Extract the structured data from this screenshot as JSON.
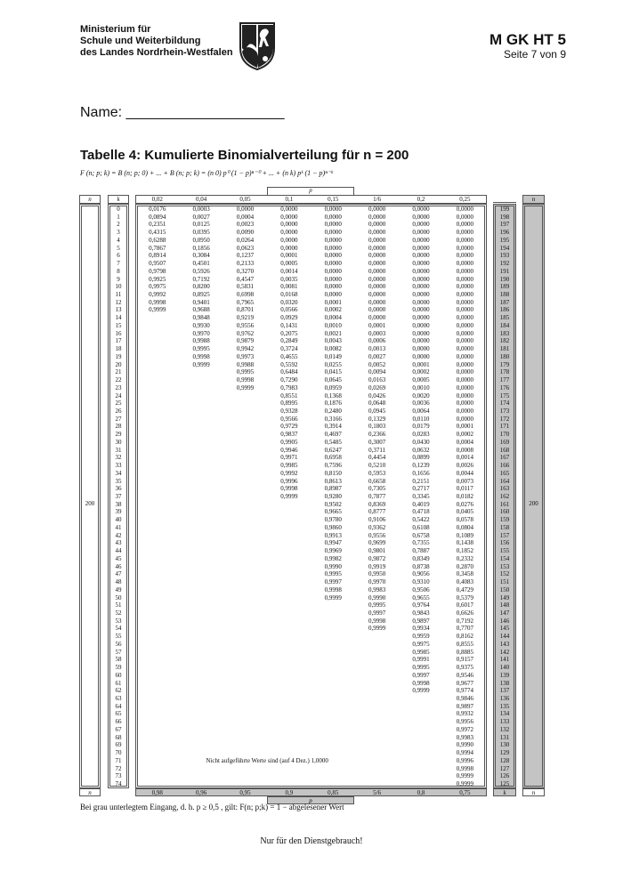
{
  "header": {
    "ministry_lines": [
      "Ministerium für",
      "Schule und Weiterbildung",
      "des Landes Nordrhein-Westfalen"
    ],
    "logo": "NRW coat of arms",
    "exam_code": "M GK HT 5",
    "page_label": "Seite 7 von 9"
  },
  "name_field": "Name: ____________________",
  "title": "Tabelle 4: Kumulierte Binomialverteilung für n = 200",
  "formula": "F (n; p; k) = B (n; p; 0) + ... + B (n; p; k) = (n 0) p⁰ (1 − p)ⁿ⁻⁰ + ... + (n k) pᵏ (1 − p)ⁿ⁻ᵏ",
  "table": {
    "n_label": "n",
    "k_label": "k",
    "p_label": "p",
    "n_value": "200",
    "note": "Nicht aufgeführte Werte sind (auf 4 Dez.) 1,0000",
    "k_values": [
      0,
      1,
      2,
      3,
      4,
      5,
      6,
      7,
      8,
      9,
      10,
      11,
      12,
      13,
      14,
      15,
      16,
      17,
      18,
      19,
      20,
      21,
      22,
      23,
      24,
      25,
      26,
      27,
      28,
      29,
      30,
      31,
      32,
      33,
      34,
      35,
      36,
      37,
      38,
      39,
      40,
      41,
      42,
      43,
      44,
      45,
      46,
      47,
      48,
      49,
      50,
      51,
      52,
      53,
      54,
      55,
      56,
      57,
      58,
      59,
      60,
      61,
      62,
      63,
      64,
      65,
      66,
      67,
      68,
      69,
      70,
      71,
      72,
      73,
      74
    ],
    "k_right_values": [
      199,
      198,
      197,
      196,
      195,
      194,
      193,
      192,
      191,
      190,
      189,
      188,
      187,
      186,
      185,
      184,
      183,
      182,
      181,
      180,
      179,
      178,
      177,
      176,
      175,
      174,
      173,
      172,
      171,
      170,
      169,
      168,
      167,
      166,
      165,
      164,
      163,
      162,
      161,
      160,
      159,
      158,
      157,
      156,
      155,
      154,
      153,
      152,
      151,
      150,
      149,
      148,
      147,
      146,
      145,
      144,
      143,
      142,
      141,
      140,
      139,
      138,
      137,
      136,
      135,
      134,
      133,
      132,
      131,
      130,
      129,
      128,
      127,
      126,
      125
    ],
    "gray_color": "#c4c4c4",
    "columns": [
      {
        "p": "0,02",
        "p_complement": "0,98",
        "values": [
          "0,0176",
          "0,0894",
          "0,2351",
          "0,4315",
          "0,6288",
          "0,7867",
          "0,8914",
          "0,9507",
          "0,9798",
          "0,9925",
          "0,9975",
          "0,9992",
          "0,9998",
          "0,9999"
        ]
      },
      {
        "p": "0,04",
        "p_complement": "0,96",
        "values": [
          "0,0003",
          "0,0027",
          "0,0125",
          "0,0395",
          "0,0950",
          "0,1856",
          "0,3084",
          "0,4501",
          "0,5926",
          "0,7192",
          "0,8200",
          "0,8925",
          "0,9401",
          "0,9688",
          "0,9848",
          "0,9930",
          "0,9970",
          "0,9988",
          "0,9995",
          "0,9998",
          "0,9999"
        ]
      },
      {
        "p": "0,05",
        "p_complement": "0,95",
        "values": [
          "0,0000",
          "0,0004",
          "0,0023",
          "0,0090",
          "0,0264",
          "0,0623",
          "0,1237",
          "0,2133",
          "0,3270",
          "0,4547",
          "0,5831",
          "0,6998",
          "0,7965",
          "0,8701",
          "0,9219",
          "0,9556",
          "0,9762",
          "0,9879",
          "0,9942",
          "0,9973",
          "0,9988",
          "0,9995",
          "0,9998",
          "0,9999"
        ]
      },
      {
        "p": "0,1",
        "p_complement": "0,9",
        "values": [
          "0,0000",
          "0,0000",
          "0,0000",
          "0,0000",
          "0,0000",
          "0,0000",
          "0,0001",
          "0,0005",
          "0,0014",
          "0,0035",
          "0,0081",
          "0,0168",
          "0,0320",
          "0,0566",
          "0,0929",
          "0,1431",
          "0,2075",
          "0,2849",
          "0,3724",
          "0,4655",
          "0,5592",
          "0,6484",
          "0,7290",
          "0,7983",
          "0,8551",
          "0,8995",
          "0,9328",
          "0,9566",
          "0,9729",
          "0,9837",
          "0,9905",
          "0,9946",
          "0,9971",
          "0,9985",
          "0,9992",
          "0,9996",
          "0,9998",
          "0,9999"
        ]
      },
      {
        "p": "0,15",
        "p_complement": "0,85",
        "values": [
          "0,0000",
          "0,0000",
          "0,0000",
          "0,0000",
          "0,0000",
          "0,0000",
          "0,0000",
          "0,0000",
          "0,0000",
          "0,0000",
          "0,0000",
          "0,0000",
          "0,0001",
          "0,0002",
          "0,0004",
          "0,0010",
          "0,0021",
          "0,0043",
          "0,0082",
          "0,0149",
          "0,0255",
          "0,0415",
          "0,0645",
          "0,0959",
          "0,1368",
          "0,1876",
          "0,2480",
          "0,3166",
          "0,3914",
          "0,4697",
          "0,5485",
          "0,6247",
          "0,6958",
          "0,7596",
          "0,8150",
          "0,8613",
          "0,8987",
          "0,9280",
          "0,9502",
          "0,9665",
          "0,9780",
          "0,9860",
          "0,9913",
          "0,9947",
          "0,9969",
          "0,9982",
          "0,9990",
          "0,9995",
          "0,9997",
          "0,9998",
          "0,9999"
        ]
      },
      {
        "p": "1/6",
        "p_complement": "5/6",
        "values": [
          "0,0000",
          "0,0000",
          "0,0000",
          "0,0000",
          "0,0000",
          "0,0000",
          "0,0000",
          "0,0000",
          "0,0000",
          "0,0000",
          "0,0000",
          "0,0000",
          "0,0000",
          "0,0000",
          "0,0000",
          "0,0001",
          "0,0003",
          "0,0006",
          "0,0013",
          "0,0027",
          "0,0052",
          "0,0094",
          "0,0163",
          "0,0269",
          "0,0426",
          "0,0648",
          "0,0945",
          "0,1329",
          "0,1803",
          "0,2366",
          "0,3007",
          "0,3711",
          "0,4454",
          "0,5210",
          "0,5953",
          "0,6658",
          "0,7305",
          "0,7877",
          "0,8369",
          "0,8777",
          "0,9106",
          "0,9362",
          "0,9556",
          "0,9699",
          "0,9801",
          "0,9872",
          "0,9919",
          "0,9950",
          "0,9970",
          "0,9983",
          "0,9990",
          "0,9995",
          "0,9997",
          "0,9998",
          "0,9999"
        ]
      },
      {
        "p": "0,2",
        "p_complement": "0,8",
        "values": [
          "0,0000",
          "0,0000",
          "0,0000",
          "0,0000",
          "0,0000",
          "0,0000",
          "0,0000",
          "0,0000",
          "0,0000",
          "0,0000",
          "0,0000",
          "0,0000",
          "0,0000",
          "0,0000",
          "0,0000",
          "0,0000",
          "0,0000",
          "0,0000",
          "0,0000",
          "0,0000",
          "0,0001",
          "0,0002",
          "0,0005",
          "0,0010",
          "0,0020",
          "0,0036",
          "0,0064",
          "0,0110",
          "0,0179",
          "0,0283",
          "0,0430",
          "0,0632",
          "0,0899",
          "0,1239",
          "0,1656",
          "0,2151",
          "0,2717",
          "0,3345",
          "0,4019",
          "0,4718",
          "0,5422",
          "0,6108",
          "0,6758",
          "0,7355",
          "0,7887",
          "0,8349",
          "0,8738",
          "0,9056",
          "0,9310",
          "0,9506",
          "0,9655",
          "0,9764",
          "0,9843",
          "0,9897",
          "0,9934",
          "0,9959",
          "0,9975",
          "0,9985",
          "0,9991",
          "0,9995",
          "0,9997",
          "0,9998",
          "0,9999"
        ]
      },
      {
        "p": "0,25",
        "p_complement": "0,75",
        "values": [
          "0,0000",
          "0,0000",
          "0,0000",
          "0,0000",
          "0,0000",
          "0,0000",
          "0,0000",
          "0,0000",
          "0,0000",
          "0,0000",
          "0,0000",
          "0,0000",
          "0,0000",
          "0,0000",
          "0,0000",
          "0,0000",
          "0,0000",
          "0,0000",
          "0,0000",
          "0,0000",
          "0,0000",
          "0,0000",
          "0,0000",
          "0,0000",
          "0,0000",
          "0,0000",
          "0,0000",
          "0,0000",
          "0,0001",
          "0,0002",
          "0,0004",
          "0,0008",
          "0,0014",
          "0,0026",
          "0,0044",
          "0,0073",
          "0,0117",
          "0,0182",
          "0,0276",
          "0,0405",
          "0,0578",
          "0,0804",
          "0,1089",
          "0,1438",
          "0,1852",
          "0,2332",
          "0,2870",
          "0,3458",
          "0,4083",
          "0,4729",
          "0,5379",
          "0,6017",
          "0,6626",
          "0,7192",
          "0,7707",
          "0,8162",
          "0,8555",
          "0,8885",
          "0,9157",
          "0,9375",
          "0,9546",
          "0,9677",
          "0,9774",
          "0,9846",
          "0,9897",
          "0,9932",
          "0,9956",
          "0,9972",
          "0,9983",
          "0,9990",
          "0,9994",
          "0,9996",
          "0,9998",
          "0,9999",
          "0,9999"
        ]
      }
    ]
  },
  "footnote": "Bei grau unterlegtem Eingang, d. h.  p ≥ 0,5 , gilt:  F(n; p;k) = 1 − abgelesener Wert",
  "stamp": "Nur für den Dienstgebrauch!"
}
